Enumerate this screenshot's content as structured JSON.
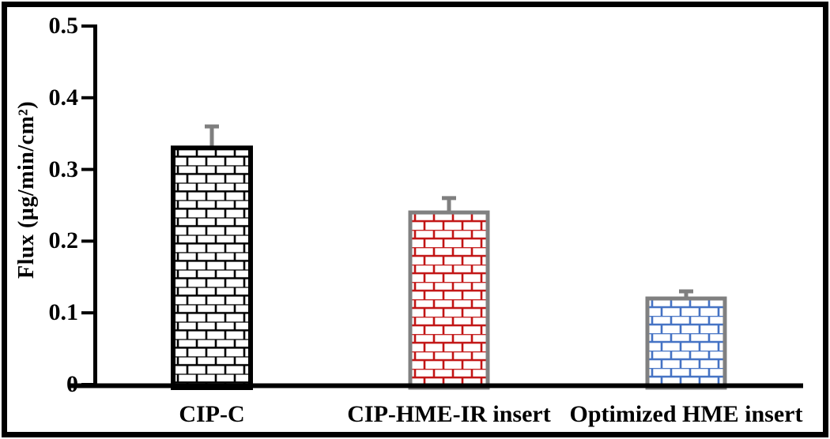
{
  "figure": {
    "background": "#ffffff",
    "border_color": "#000000"
  },
  "chart_data": {
    "type": "bar",
    "title": "",
    "xlabel": "",
    "ylabel": "Flux (µg/min/cm²)",
    "categories": [
      "CIP-C",
      "CIP-HME-IR insert",
      "Optimized HME insert"
    ],
    "values": [
      0.33,
      0.24,
      0.12
    ],
    "errors": [
      0.03,
      0.02,
      0.01
    ],
    "ylim": [
      0,
      0.5
    ],
    "yticks": [
      "0",
      "0.1",
      "0.2",
      "0.3",
      "0.4",
      "0.5"
    ],
    "grid": false,
    "legend_position": "none",
    "bar_fill_pattern": "brick",
    "bar_fill_background": "#ffffff",
    "bar_pattern_colors": [
      "#000000",
      "#c21414",
      "#4472c4"
    ],
    "bar_border_colors": [
      "#000000",
      "#808080",
      "#808080"
    ],
    "error_bar_color": "#7f7f7f",
    "axis_color": "#000000"
  }
}
